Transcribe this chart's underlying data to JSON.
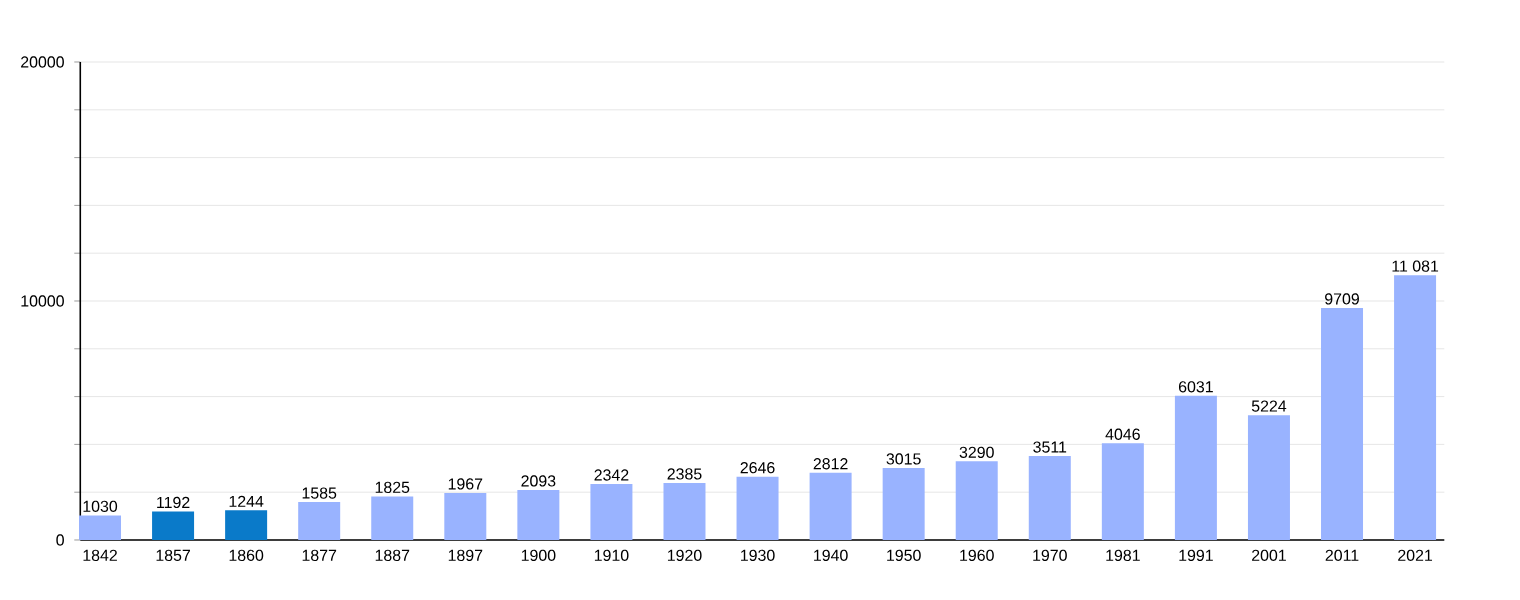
{
  "chart_data": {
    "type": "bar",
    "categories": [
      "1842",
      "1857",
      "1860",
      "1877",
      "1887",
      "1897",
      "1900",
      "1910",
      "1920",
      "1930",
      "1940",
      "1950",
      "1960",
      "1970",
      "1981",
      "1991",
      "2001",
      "2011",
      "2021"
    ],
    "values": [
      1030,
      1192,
      1244,
      1585,
      1825,
      1967,
      2093,
      2342,
      2385,
      2646,
      2812,
      3015,
      3290,
      3511,
      4046,
      6031,
      5224,
      9709,
      11081
    ],
    "value_labels": [
      "1030",
      "1192",
      "1244",
      "1585",
      "1825",
      "1967",
      "2093",
      "2342",
      "2385",
      "2646",
      "2812",
      "3015",
      "3290",
      "3511",
      "4046",
      "6031",
      "5224",
      "9709",
      "11 081"
    ],
    "colors": [
      "#99b3ff",
      "#0a7ac9",
      "#0a7ac9",
      "#99b3ff",
      "#99b3ff",
      "#99b3ff",
      "#99b3ff",
      "#99b3ff",
      "#99b3ff",
      "#99b3ff",
      "#99b3ff",
      "#99b3ff",
      "#99b3ff",
      "#99b3ff",
      "#99b3ff",
      "#99b3ff",
      "#99b3ff",
      "#99b3ff",
      "#99b3ff"
    ],
    "ylim": [
      0,
      20000
    ],
    "yticks": [
      0,
      {
        "value": 2000,
        "label": null
      },
      {
        "value": 4000,
        "label": null
      },
      {
        "value": 6000,
        "label": null
      },
      {
        "value": 8000,
        "label": null
      },
      10000,
      {
        "value": 12000,
        "label": null
      },
      {
        "value": 14000,
        "label": null
      },
      {
        "value": 16000,
        "label": null
      },
      {
        "value": 18000,
        "label": null
      },
      20000
    ],
    "grid": "y"
  }
}
